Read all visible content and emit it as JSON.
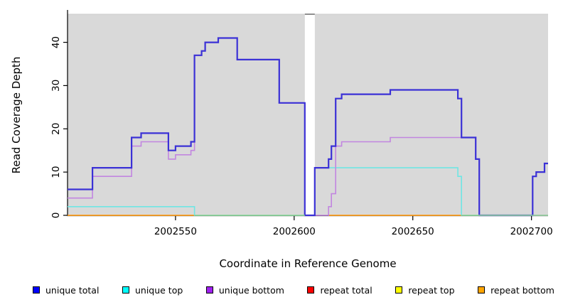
{
  "chart_data": {
    "type": "line",
    "subtype": "step-coverage-plot",
    "title": "",
    "xlabel": "Coordinate in Reference Genome",
    "ylabel": "Read Coverage Depth",
    "xlim": [
      2002504.5,
      2002707
    ],
    "ylim": [
      0,
      46.5
    ],
    "x_ticks": [
      2002550,
      2002600,
      2002650,
      2002700
    ],
    "y_ticks": [
      0,
      10,
      20,
      30,
      40
    ],
    "grid": false,
    "plot_bg": "#d9d9d9",
    "gap_region": {
      "x1": 2002604.5,
      "x2": 2002608.7,
      "color": "#ffffff",
      "top_dash_color": "#909090"
    },
    "axis_color": "#000000",
    "top_border_color": "#cdcdcd",
    "series": [
      {
        "name": "repeat bottom",
        "color": "#ffa020",
        "width": 1.8,
        "segments": [
          [
            [
              2002504.5,
              0
            ],
            [
              2002558,
              0
            ]
          ],
          [
            [
              2002614.5,
              0
            ],
            [
              2002670.5,
              0
            ]
          ]
        ]
      },
      {
        "name": "unique top",
        "color": "#6fe6e4",
        "width": 1.6,
        "points": [
          [
            2002504.5,
            2
          ],
          [
            2002558,
            0
          ],
          [
            2002608.7,
            11
          ],
          [
            2002669,
            9
          ],
          [
            2002670.5,
            0
          ],
          [
            2002707,
            0
          ]
        ]
      },
      {
        "name": "unique bottom",
        "color": "#c286e0",
        "width": 1.6,
        "points": [
          [
            2002504.5,
            4
          ],
          [
            2002515,
            9
          ],
          [
            2002531.5,
            16
          ],
          [
            2002535.5,
            17
          ],
          [
            2002547,
            13
          ],
          [
            2002550,
            14
          ],
          [
            2002556.5,
            15
          ],
          [
            2002558,
            37
          ],
          [
            2002561,
            38
          ],
          [
            2002562.5,
            40
          ],
          [
            2002568,
            41
          ],
          [
            2002576,
            36
          ],
          [
            2002593.7,
            26
          ],
          [
            2002604.5,
            0
          ],
          [
            2002614.5,
            2
          ],
          [
            2002615.7,
            5
          ],
          [
            2002617.5,
            16
          ],
          [
            2002620,
            17
          ],
          [
            2002640.5,
            18
          ],
          [
            2002676.5,
            13
          ],
          [
            2002678,
            0
          ],
          [
            2002707,
            0
          ]
        ]
      },
      {
        "name": "unique total",
        "color": "#3b31d6",
        "width": 2.2,
        "points": [
          [
            2002504.5,
            6
          ],
          [
            2002515,
            11
          ],
          [
            2002531.5,
            18
          ],
          [
            2002535.5,
            19
          ],
          [
            2002547,
            15
          ],
          [
            2002550,
            16
          ],
          [
            2002556.5,
            17
          ],
          [
            2002558,
            37
          ],
          [
            2002561,
            38
          ],
          [
            2002562.5,
            40
          ],
          [
            2002568,
            41
          ],
          [
            2002576,
            36
          ],
          [
            2002593.7,
            26
          ],
          [
            2002604.5,
            0
          ],
          [
            2002608.7,
            11
          ],
          [
            2002614.5,
            13
          ],
          [
            2002615.7,
            16
          ],
          [
            2002617.5,
            27
          ],
          [
            2002620,
            28
          ],
          [
            2002640.5,
            29
          ],
          [
            2002669,
            27
          ],
          [
            2002670.5,
            18
          ],
          [
            2002676.5,
            13
          ],
          [
            2002678,
            0
          ],
          [
            2002700.5,
            9
          ],
          [
            2002702,
            10
          ],
          [
            2002705.5,
            12
          ],
          [
            2002707,
            12
          ]
        ]
      },
      {
        "name": "baseline-green",
        "color": "#93d793",
        "width": 1.5,
        "segments": [
          [
            [
              2002558,
              0
            ],
            [
              2002604.5,
              0
            ]
          ],
          [
            [
              2002670.5,
              0
            ],
            [
              2002707,
              0
            ]
          ]
        ]
      }
    ]
  },
  "legend": {
    "items": [
      {
        "label": "unique total",
        "color": "#0000ff"
      },
      {
        "label": "unique top",
        "color": "#00ffff"
      },
      {
        "label": "unique bottom",
        "color": "#a020f0"
      },
      {
        "label": "repeat total",
        "color": "#ff0000"
      },
      {
        "label": "repeat top",
        "color": "#ffff00"
      },
      {
        "label": "repeat bottom",
        "color": "#ffa500"
      }
    ]
  },
  "labels": {
    "xlabel": "Coordinate in Reference Genome",
    "ylabel": "Read Coverage Depth"
  }
}
